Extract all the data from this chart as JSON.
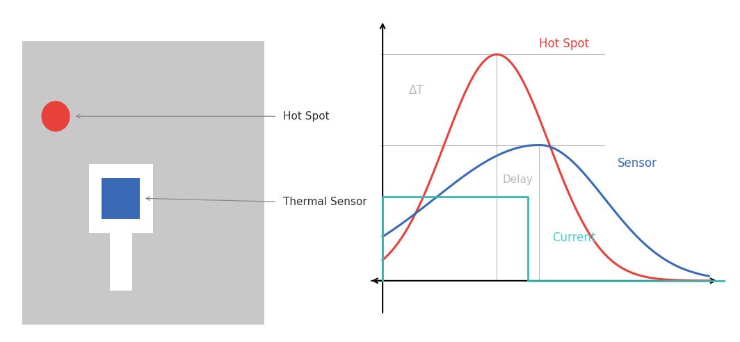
{
  "bg_color": "#ffffff",
  "gray_rect_color": "#c8c8c8",
  "white_rect_color": "#ffffff",
  "blue_square_color": "#3a6ab5",
  "red_dot_color": "#e8403a",
  "hot_spot_label": "Hot Spot",
  "sensor_label": "Thermal Sensor",
  "arrow_color": "#888888",
  "curve_red_color": "#e8403a",
  "curve_blue_color": "#3a6ab5",
  "curve_teal_color": "#3ab5b5",
  "label_hot_spot": "Hot Spot",
  "label_sensor": "Sensor",
  "label_current": "Current",
  "label_delta_t": "ΔT",
  "label_delay": "Delay",
  "grid_color": "#bbbbbb",
  "axis_color": "#555555"
}
